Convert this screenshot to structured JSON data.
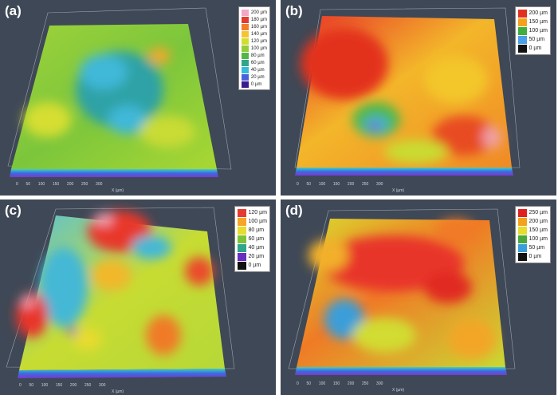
{
  "panels": [
    {
      "id": "a",
      "tag": "(a)",
      "legend": [
        "200 µm",
        "180 µm",
        "160 µm",
        "140 µm",
        "120 µm",
        "100 µm",
        "80 µm",
        "60 µm",
        "40 µm",
        "20 µm",
        "0 µm"
      ],
      "colors": [
        "#f4a6c6",
        "#e53a2f",
        "#f07e2a",
        "#f6c430",
        "#d2dd2e",
        "#95cc3a",
        "#52b548",
        "#2ea58c",
        "#35b9de",
        "#4a62d9",
        "#3b1c8e"
      ]
    },
    {
      "id": "b",
      "tag": "(b)",
      "legend": [
        "200 µm",
        "150 µm",
        "100 µm",
        "50 µm",
        "0 µm"
      ],
      "colors": [
        "#e0301f",
        "#f2a21d",
        "#3fae3f",
        "#4c9ee6",
        "#111111"
      ]
    },
    {
      "id": "c",
      "tag": "(c)",
      "legend": [
        "120 µm",
        "100 µm",
        "80 µm",
        "60 µm",
        "40 µm",
        "20 µm",
        "0 µm"
      ],
      "colors": [
        "#e53a2f",
        "#f6a52a",
        "#e8dc2e",
        "#7ec23a",
        "#2ea58c",
        "#6a2fc0",
        "#111111"
      ]
    },
    {
      "id": "d",
      "tag": "(d)",
      "legend": [
        "250 µm",
        "200 µm",
        "150 µm",
        "100 µm",
        "50 µm",
        "0 µm"
      ],
      "colors": [
        "#e0201f",
        "#f2a21d",
        "#e8dc2e",
        "#49a83c",
        "#3a9ed8",
        "#111111"
      ]
    }
  ]
}
